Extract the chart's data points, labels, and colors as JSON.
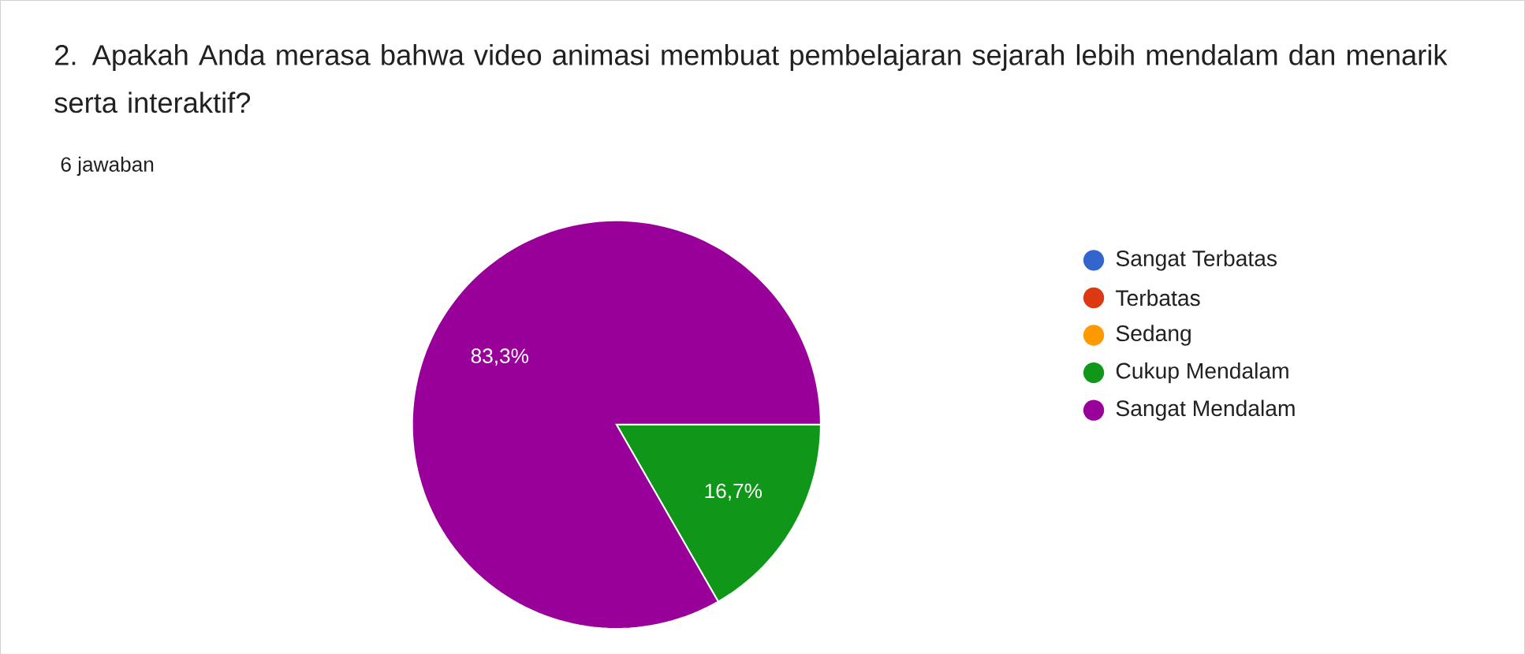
{
  "chart_data": {
    "type": "pie",
    "title": "2. Apakah Anda merasa bahwa video animasi membuat pembelajaran sejarah lebih mendalam dan menarik serta interaktif?",
    "subtitle": "6 jawaban",
    "categories": [
      "Sangat Terbatas",
      "Terbatas",
      "Sedang",
      "Cukup Mendalam",
      "Sangat Mendalam"
    ],
    "values": [
      0,
      0,
      0,
      16.7,
      83.3
    ],
    "colors": [
      "#3366cc",
      "#dc3912",
      "#ff9900",
      "#109618",
      "#990099"
    ],
    "value_labels": [
      null,
      null,
      null,
      "16,7%",
      "83,3%"
    ],
    "legend": "right"
  }
}
